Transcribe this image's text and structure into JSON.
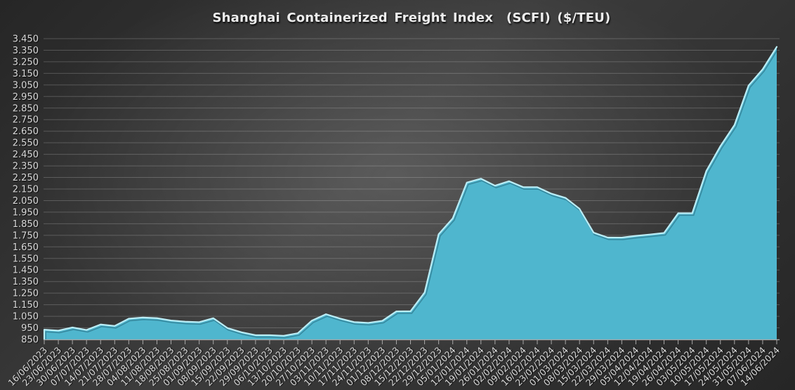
{
  "chart_data": {
    "type": "area",
    "title": "Shanghai Containerized Freight Index  (SCFI) ($/TEU)",
    "xlabel": "",
    "ylabel": "",
    "x": [
      "16/06/2023",
      "23/06/2023",
      "30/06/2023",
      "07/07/2023",
      "14/07/2023",
      "21/07/2023",
      "28/07/2023",
      "04/08/2023",
      "11/08/2023",
      "18/08/2023",
      "25/08/2023",
      "01/09/2023",
      "08/09/2023",
      "15/09/2023",
      "22/09/2023",
      "29/09/2023",
      "06/10/2023",
      "13/10/2023",
      "20/10/2023",
      "27/10/2023",
      "03/11/2023",
      "10/11/2023",
      "17/11/2023",
      "24/11/2023",
      "01/12/2023",
      "08/12/2023",
      "15/12/2023",
      "22/12/2023",
      "29/12/2023",
      "05/01/2024",
      "12/01/2024",
      "19/01/2024",
      "26/01/2024",
      "02/02/2024",
      "09/02/2024",
      "16/02/2024",
      "23/02/2024",
      "01/03/2024",
      "08/03/2024",
      "15/03/2024",
      "22/03/2024",
      "29/03/2024",
      "05/04/2024",
      "12/04/2024",
      "19/04/2024",
      "26/04/2024",
      "03/05/2024",
      "10/05/2024",
      "17/05/2024",
      "24/05/2024",
      "31/05/2024",
      "07/06/2024",
      "14/06/2024"
    ],
    "values": [
      934.31,
      925.91,
      953.6,
      931.73,
      979.11,
      966.45,
      1029.23,
      1039.32,
      1033.67,
      1013.78,
      1003.19,
      999.25,
      1033.21,
      948.68,
      911.71,
      886.89,
      886.89,
      881.65,
      903.44,
      1012.57,
      1067.88,
      1030.24,
      999.92,
      993.21,
      1010.81,
      1092.61,
      1093.52,
      1254.99,
      1759.57,
      1896.65,
      2206.03,
      2239.61,
      2179.09,
      2217.73,
      2166.31,
      2166.31,
      2109.91,
      2073.75,
      1979.12,
      1772.92,
      1730.98,
      1730.59,
      1745.43,
      1757.04,
      1770.18,
      1940.63,
      1940.63,
      2305.79,
      2520.76,
      2703.43,
      3044.77,
      3184.87,
      3379.22
    ],
    "ylim": [
      850,
      3450
    ],
    "ytick_step": 100,
    "ytick_labels": [
      "850",
      "950",
      "1.050",
      "1.150",
      "1.250",
      "1.350",
      "1.450",
      "1.550",
      "1.650",
      "1.750",
      "1.850",
      "1.950",
      "2.050",
      "2.150",
      "2.250",
      "2.350",
      "2.450",
      "2.550",
      "2.650",
      "2.750",
      "2.850",
      "2.950",
      "3.050",
      "3.150",
      "3.250",
      "3.350",
      "3.450"
    ],
    "grid": true,
    "legend": false,
    "x_label_rotation": -45,
    "style": {
      "area_fill": "#4FB6CE",
      "area_highlight": "#BBEDF6",
      "bevel_shadow": "rgba(8,50,66,0.35)",
      "grid_color": "rgba(235,235,235,0.22)",
      "axis_color": "#A8A8A8",
      "label_color": "#D9D9D9",
      "title_color": "#EDEDED"
    }
  }
}
